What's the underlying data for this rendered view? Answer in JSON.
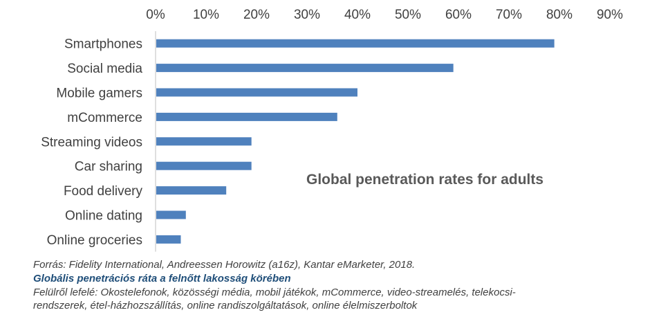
{
  "chart_data": {
    "type": "bar",
    "orientation": "horizontal",
    "title": "Global penetration rates for adults",
    "categories": [
      "Smartphones",
      "Social media",
      "Mobile gamers",
      "mCommerce",
      "Streaming videos",
      "Car sharing",
      "Food delivery",
      "Online dating",
      "Online groceries"
    ],
    "values": [
      0.79,
      0.59,
      0.4,
      0.36,
      0.19,
      0.19,
      0.14,
      0.06,
      0.05
    ],
    "xlim": [
      0,
      0.9
    ],
    "tick_labels": [
      "0%",
      "10%",
      "20%",
      "30%",
      "40%",
      "50%",
      "60%",
      "70%",
      "80%",
      "90%"
    ],
    "x_axis_position": "top",
    "grid": false,
    "bar_color": "#4f81bd"
  },
  "caption": {
    "source": "Forrás: Fidelity International, Andreessen Horowitz (a16z), Kantar eMarketer, 2018.",
    "subtitle": "Globális penetrációs ráta a felnőtt lakosság körében",
    "note_line1": "Felülről lefelé: Okostelefonok, közösségi média, mobil játékok, mCommerce, video-streamelés, telekocsi-",
    "note_line2": "rendszerek, étel-házhozszállítás, online randiszolgáltatások, online élelmiszerboltok"
  }
}
